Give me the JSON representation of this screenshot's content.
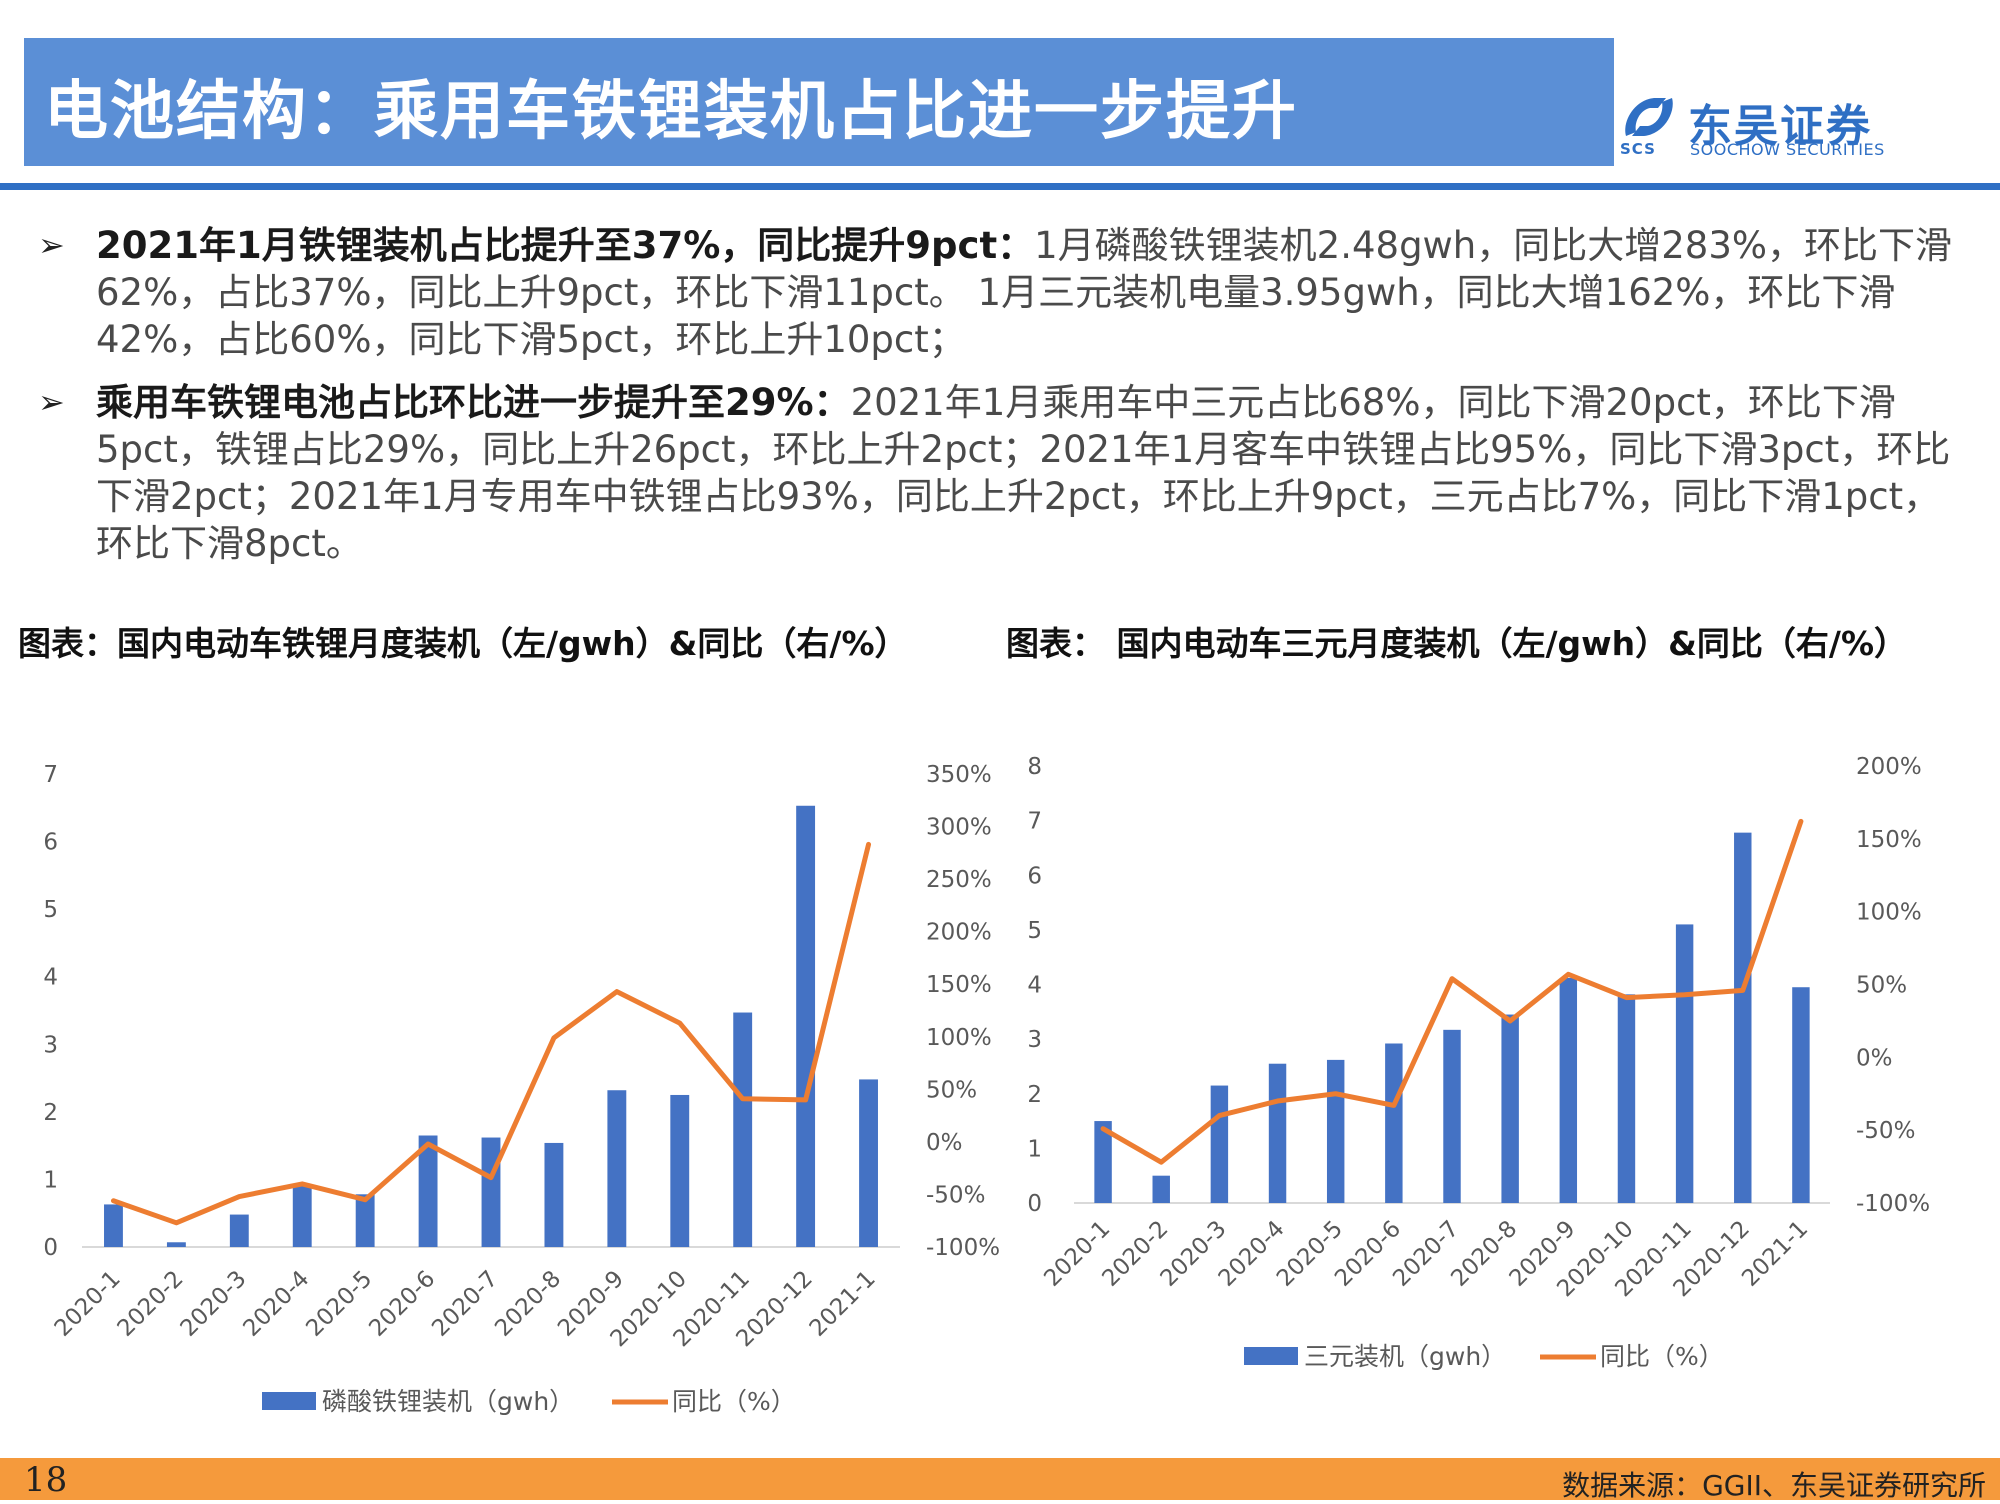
{
  "header": {
    "title": "电池结构：乘用车铁锂装机占比进一步提升",
    "logo_cn": "东吴证券",
    "logo_en": "SOOCHOW SECURITIES",
    "logo_abbr": "SCS"
  },
  "bullets": [
    {
      "bold": "2021年1月铁锂装机占比提升至37%，同比提升9pct：",
      "text": "1月磷酸铁锂装机2.48gwh，同比大增283%，环比下滑62%，占比37%，同比上升9pct，环比下滑11pct。 1月三元装机电量3.95gwh，同比大增162%，环比下滑42%，占比60%，同比下滑5pct，环比上升10pct；"
    },
    {
      "bold": "乘用车铁锂电池占比环比进一步提升至29%：",
      "text": "2021年1月乘用车中三元占比68%，同比下滑20pct，环比下滑5pct，铁锂占比29%，同比上升26pct，环比上升2pct；2021年1月客车中铁锂占比95%，同比下滑3pct，环比下滑2pct；2021年1月专用车中铁锂占比93%，同比上升2pct，环比上升9pct，三元占比7%，同比下滑1pct，环比下滑8pct。"
    }
  ],
  "chart_titles": [
    "图表：国内电动车铁锂月度装机（左/gwh）&同比（右/%）",
    "图表： 国内电动车三元月度装机（左/gwh）&同比（右/%）"
  ],
  "chart_data": [
    {
      "type": "bar",
      "categories": [
        "2020-1",
        "2020-2",
        "2020-3",
        "2020-4",
        "2020-5",
        "2020-6",
        "2020-7",
        "2020-8",
        "2020-9",
        "2020-10",
        "2020-11",
        "2020-12",
        "2021-1"
      ],
      "series": [
        {
          "name": "磷酸铁锂装机（gwh）",
          "type": "bar",
          "axis": "left",
          "color": "#4472c4",
          "values": [
            0.63,
            0.07,
            0.48,
            0.9,
            0.78,
            1.65,
            1.62,
            1.54,
            2.32,
            2.25,
            3.47,
            6.53,
            2.48
          ]
        },
        {
          "name": "同比（%）",
          "type": "line",
          "axis": "right",
          "color": "#ed7d31",
          "values": [
            -56,
            -77,
            -52,
            -40,
            -55,
            -2,
            -34,
            99,
            143,
            113,
            41,
            40,
            283
          ]
        }
      ],
      "left_axis": {
        "ylim": [
          0,
          7
        ],
        "ticks": [
          "0",
          "1",
          "2",
          "3",
          "4",
          "5",
          "6",
          "7"
        ]
      },
      "right_axis": {
        "ylim": [
          -100,
          350
        ],
        "ticks": [
          "-100%",
          "-50%",
          "0%",
          "50%",
          "100%",
          "150%",
          "200%",
          "250%",
          "300%",
          "350%"
        ]
      },
      "legend": "bottom"
    },
    {
      "type": "bar",
      "categories": [
        "2020-1",
        "2020-2",
        "2020-3",
        "2020-4",
        "2020-5",
        "2020-6",
        "2020-7",
        "2020-8",
        "2020-9",
        "2020-10",
        "2020-11",
        "2020-12",
        "2021-1"
      ],
      "series": [
        {
          "name": "三元装机（gwh）",
          "type": "bar",
          "axis": "left",
          "color": "#4472c4",
          "values": [
            1.5,
            0.5,
            2.15,
            2.55,
            2.62,
            2.92,
            3.17,
            3.45,
            4.12,
            3.82,
            5.1,
            6.78,
            3.95
          ]
        },
        {
          "name": "同比（%）",
          "type": "line",
          "axis": "right",
          "color": "#ed7d31",
          "values": [
            -49,
            -72,
            -40,
            -30,
            -25,
            -33,
            54,
            25,
            57,
            41,
            43,
            46,
            162
          ]
        }
      ],
      "left_axis": {
        "ylim": [
          0,
          8
        ],
        "ticks": [
          "0",
          "1",
          "2",
          "3",
          "4",
          "5",
          "6",
          "7",
          "8"
        ]
      },
      "right_axis": {
        "ylim": [
          -100,
          200
        ],
        "ticks": [
          "-100%",
          "-50%",
          "0%",
          "50%",
          "100%",
          "150%",
          "200%"
        ]
      },
      "legend": "bottom"
    }
  ],
  "footer": {
    "page": "18",
    "source": "数据来源：GGII、东吴证券研究所"
  }
}
